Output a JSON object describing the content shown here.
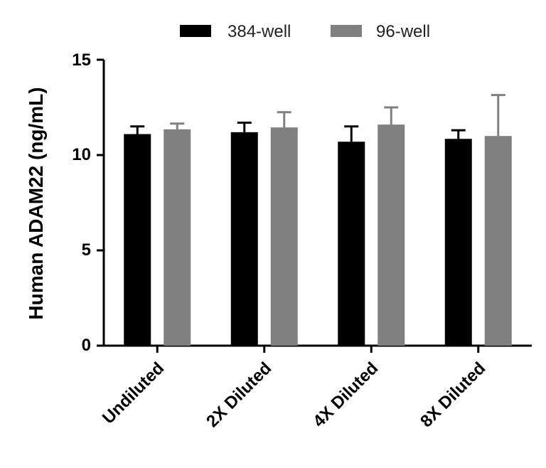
{
  "chart_data": {
    "type": "bar",
    "title": "",
    "xlabel": "",
    "ylabel": "Human ADAM22 (ng/mL)",
    "ylim": [
      0,
      15
    ],
    "yticks": [
      "0",
      "5",
      "10",
      "15"
    ],
    "categories": [
      "Undiluted",
      "2X Diluted",
      "4X Diluted",
      "8X Diluted"
    ],
    "legend_position": "top",
    "series": [
      {
        "name": "384-well",
        "color": "#000000",
        "values": [
          11.1,
          11.2,
          10.7,
          10.85
        ],
        "errors": [
          0.4,
          0.5,
          0.8,
          0.45
        ]
      },
      {
        "name": "96-well",
        "color": "#808080",
        "values": [
          11.35,
          11.45,
          11.6,
          11.0
        ],
        "errors": [
          0.3,
          0.8,
          0.9,
          2.15
        ]
      }
    ]
  }
}
